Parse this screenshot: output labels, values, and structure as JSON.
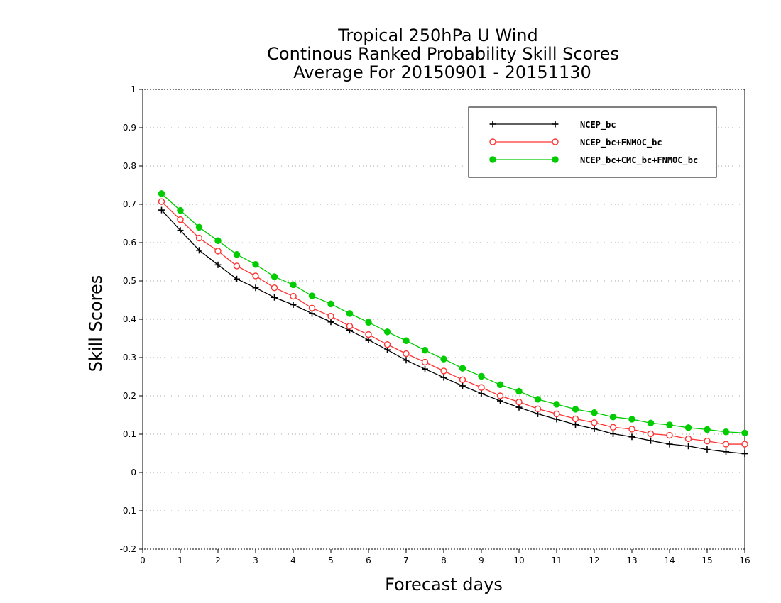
{
  "chart_data": {
    "type": "line",
    "title": [
      "Tropical 250hPa U Wind",
      "Continous Ranked Probability Skill Scores",
      "Average For 20150901 - 20151130"
    ],
    "xlabel": "Forecast days",
    "ylabel": "Skill Scores",
    "xlim": [
      0,
      16
    ],
    "ylim": [
      -0.2,
      1
    ],
    "xticks": [
      0,
      1,
      2,
      3,
      4,
      5,
      6,
      7,
      8,
      9,
      10,
      11,
      12,
      13,
      14,
      15,
      16
    ],
    "yticks": [
      -0.2,
      -0.1,
      0,
      0.1,
      0.2,
      0.3,
      0.4,
      0.5,
      0.6,
      0.7,
      0.8,
      0.9,
      1
    ],
    "ytick_labels": [
      "-0.2",
      "-0.1",
      "0",
      "0.1",
      "0.2",
      "0.3",
      "0.4",
      "0.5",
      "0.6",
      "0.7",
      "0.8",
      "0.9",
      "1"
    ],
    "grid": "horizontal dotted",
    "legend_position": "top-right",
    "x": [
      0.5,
      1,
      1.5,
      2,
      2.5,
      3,
      3.5,
      4,
      4.5,
      5,
      5.5,
      6,
      6.5,
      7,
      7.5,
      8,
      8.5,
      9,
      9.5,
      10,
      10.5,
      11,
      11.5,
      12,
      12.5,
      13,
      13.5,
      14,
      14.5,
      15,
      15.5,
      16
    ],
    "series": [
      {
        "name": "NCEP_bc",
        "color": "#000000",
        "marker": "plus",
        "values": [
          0.685,
          0.632,
          0.58,
          0.542,
          0.505,
          0.482,
          0.457,
          0.438,
          0.415,
          0.393,
          0.371,
          0.346,
          0.32,
          0.293,
          0.27,
          0.248,
          0.226,
          0.206,
          0.187,
          0.17,
          0.153,
          0.139,
          0.125,
          0.114,
          0.101,
          0.093,
          0.083,
          0.074,
          0.069,
          0.06,
          0.054,
          0.049
        ]
      },
      {
        "name": "NCEP_bc+FNMOC_bc",
        "color": "#ff3333",
        "marker": "open-circle",
        "values": [
          0.707,
          0.66,
          0.612,
          0.578,
          0.539,
          0.513,
          0.482,
          0.46,
          0.429,
          0.408,
          0.382,
          0.36,
          0.334,
          0.31,
          0.288,
          0.265,
          0.242,
          0.222,
          0.2,
          0.184,
          0.166,
          0.153,
          0.14,
          0.13,
          0.118,
          0.113,
          0.101,
          0.097,
          0.088,
          0.082,
          0.074,
          0.074
        ]
      },
      {
        "name": "NCEP_bc+CMC_bc+FNMOC_bc",
        "color": "#00cc00",
        "marker": "filled-circle",
        "values": [
          0.728,
          0.684,
          0.64,
          0.605,
          0.569,
          0.543,
          0.511,
          0.49,
          0.461,
          0.44,
          0.415,
          0.392,
          0.367,
          0.344,
          0.319,
          0.296,
          0.272,
          0.251,
          0.229,
          0.212,
          0.191,
          0.178,
          0.165,
          0.156,
          0.145,
          0.139,
          0.129,
          0.124,
          0.117,
          0.112,
          0.106,
          0.103
        ]
      }
    ]
  }
}
